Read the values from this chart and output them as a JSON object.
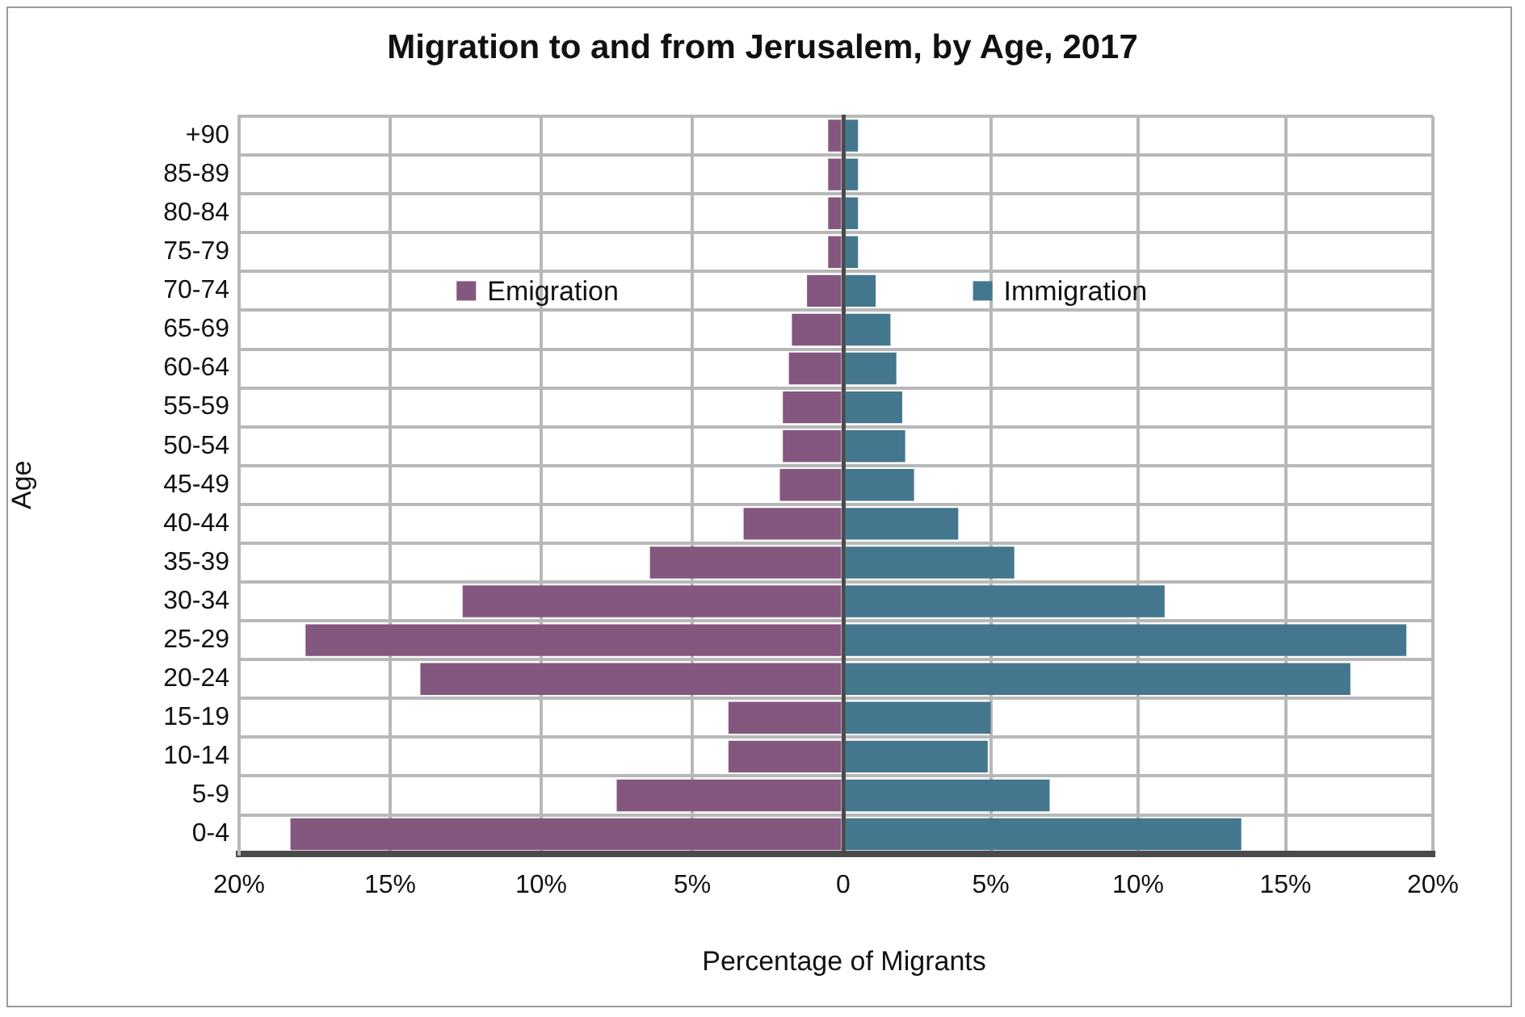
{
  "chart_data": [
    {
      "type": "bar",
      "title": "Migration to and from Jerusalem, by Age, 2017",
      "xlabel": "Percentage of Migrants",
      "ylabel": "Age",
      "orientation": "horizontal",
      "categories": [
        "+90",
        "85-89",
        "80-84",
        "75-79",
        "70-74",
        "65-69",
        "60-64",
        "55-59",
        "50-54",
        "45-49",
        "40-44",
        "35-39",
        "30-34",
        "25-29",
        "20-24",
        "15-19",
        "10-14",
        "5-9",
        "0-4"
      ],
      "series": [
        {
          "name": "Emigration",
          "color": "#84577f",
          "values": [
            0.5,
            0.5,
            0.5,
            0.5,
            1.2,
            1.7,
            1.8,
            2.0,
            2.0,
            2.1,
            3.3,
            6.4,
            12.6,
            17.8,
            14.0,
            3.8,
            3.8,
            7.5,
            18.3
          ]
        }
      ],
      "xlim": [
        20,
        0
      ],
      "xticks": [
        {
          "value": 20,
          "label": "20%"
        },
        {
          "value": 15,
          "label": "15%"
        },
        {
          "value": 10,
          "label": "10%"
        },
        {
          "value": 5,
          "label": "5%"
        },
        0
      ],
      "grid": true,
      "legend": "top"
    },
    {
      "type": "bar",
      "orientation": "horizontal",
      "categories": [
        null,
        null,
        null,
        null,
        null,
        null,
        null,
        null,
        null,
        null,
        null,
        null,
        null,
        null,
        null,
        null,
        null,
        null,
        null
      ],
      "series": [
        {
          "name": "Immigration",
          "color": "#44778d",
          "values": [
            0.5,
            0.5,
            0.5,
            0.5,
            1.1,
            1.6,
            1.8,
            2.0,
            2.1,
            2.4,
            3.9,
            5.8,
            10.9,
            19.1,
            17.2,
            5.0,
            4.9,
            7.0,
            13.5
          ]
        }
      ],
      "xlim": [
        0,
        20
      ],
      "xticks": [
        {
          "value": 0,
          "label": null
        },
        {
          "value": 5,
          "label": "5%"
        },
        {
          "value": 10,
          "label": "10%"
        },
        {
          "value": 15,
          "label": "15%"
        },
        {
          "value": 20,
          "label": "20%"
        }
      ],
      "grid": true,
      "legend": "top",
      "tick_labels": "x"
    }
  ]
}
